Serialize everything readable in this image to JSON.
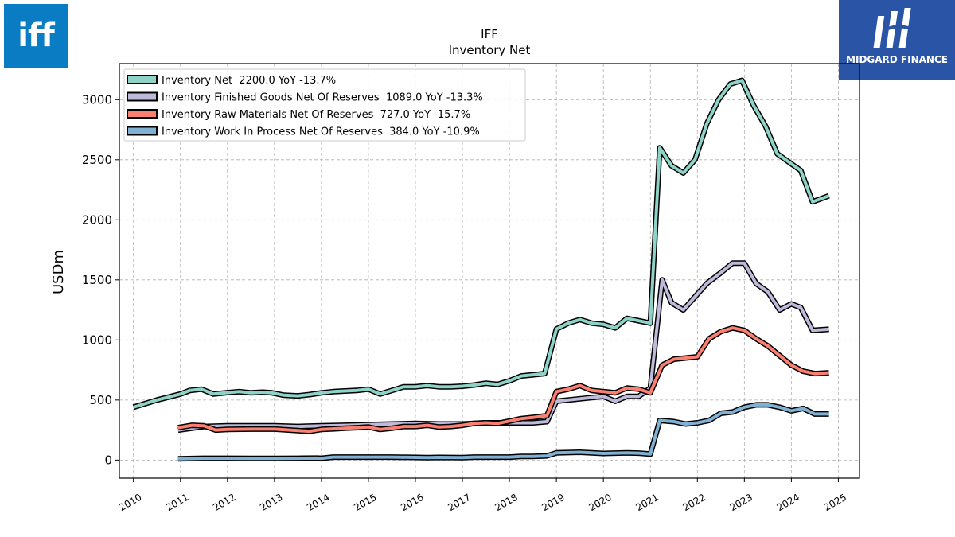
{
  "logos": {
    "left_text": "iff",
    "right_text": "MIDGARD FINANCE"
  },
  "chart_data": {
    "type": "line",
    "title": "IFF",
    "subtitle": "Inventory Net",
    "ylabel": "USDm",
    "xlabel": "",
    "xlim": [
      2009.7,
      2025.45
    ],
    "ylim": [
      -150,
      3300
    ],
    "yticks": [
      0,
      500,
      1000,
      1500,
      2000,
      2500,
      3000
    ],
    "xticks": [
      2010,
      2011,
      2012,
      2013,
      2014,
      2015,
      2016,
      2017,
      2018,
      2019,
      2020,
      2021,
      2022,
      2023,
      2024,
      2025
    ],
    "grid": true,
    "legend_position": "top-left",
    "series": [
      {
        "name": "Inventory Net  2200.0 YoY -13.7%",
        "color": "#8dd3c7",
        "x": [
          2010.0,
          2010.5,
          2011.0,
          2011.2,
          2011.45,
          2011.7,
          2011.95,
          2012.25,
          2012.5,
          2012.75,
          2012.95,
          2013.2,
          2013.5,
          2013.75,
          2014.0,
          2014.25,
          2014.5,
          2014.75,
          2015.0,
          2015.25,
          2015.5,
          2015.75,
          2016.0,
          2016.25,
          2016.5,
          2016.75,
          2017.0,
          2017.25,
          2017.5,
          2017.75,
          2018.0,
          2018.25,
          2018.5,
          2018.75,
          2019.0,
          2019.25,
          2019.5,
          2019.75,
          2020.0,
          2020.25,
          2020.5,
          2020.75,
          2021.0,
          2021.2,
          2021.45,
          2021.7,
          2021.95,
          2022.2,
          2022.45,
          2022.7,
          2022.95,
          2023.2,
          2023.45,
          2023.7,
          2023.95,
          2024.2,
          2024.45,
          2024.8
        ],
        "y": [
          440,
          500,
          550,
          580,
          590,
          550,
          560,
          570,
          560,
          565,
          560,
          540,
          535,
          545,
          560,
          570,
          575,
          580,
          590,
          550,
          580,
          610,
          610,
          620,
          610,
          610,
          615,
          625,
          640,
          630,
          660,
          700,
          710,
          720,
          1090,
          1140,
          1170,
          1140,
          1130,
          1100,
          1180,
          1160,
          1140,
          2600,
          2450,
          2390,
          2500,
          2800,
          3000,
          3130,
          3160,
          2950,
          2780,
          2550,
          2480,
          2410,
          2150,
          2200
        ]
      },
      {
        "name": "Inventory Finished Goods Net Of Reserves  1089.0 YoY -13.3%",
        "color": "#bebada",
        "x": [
          2010.95,
          2011.5,
          2012.0,
          2012.5,
          2013.0,
          2013.5,
          2014.0,
          2014.5,
          2015.0,
          2015.5,
          2016.0,
          2016.5,
          2017.0,
          2017.5,
          2018.0,
          2018.5,
          2018.8,
          2019.0,
          2019.5,
          2019.75,
          2020.0,
          2020.25,
          2020.5,
          2020.75,
          2021.0,
          2021.25,
          2021.45,
          2021.7,
          2021.95,
          2022.2,
          2022.5,
          2022.75,
          2023.0,
          2023.25,
          2023.5,
          2023.75,
          2024.0,
          2024.2,
          2024.45,
          2024.8
        ],
        "y": [
          250,
          280,
          285,
          285,
          285,
          280,
          285,
          290,
          295,
          300,
          305,
          300,
          300,
          310,
          310,
          310,
          320,
          490,
          510,
          520,
          530,
          490,
          530,
          530,
          600,
          1500,
          1310,
          1250,
          1360,
          1470,
          1560,
          1640,
          1640,
          1470,
          1400,
          1250,
          1300,
          1270,
          1080,
          1089
        ]
      },
      {
        "name": "Inventory Raw Materials Net Of Reserves  727.0 YoY -15.7%",
        "color": "#fb8072",
        "x": [
          2010.95,
          2011.25,
          2011.5,
          2011.75,
          2012.0,
          2012.5,
          2013.0,
          2013.5,
          2013.75,
          2014.0,
          2014.25,
          2014.5,
          2014.75,
          2015.0,
          2015.25,
          2015.5,
          2015.75,
          2016.0,
          2016.25,
          2016.5,
          2016.75,
          2017.0,
          2017.25,
          2017.5,
          2017.75,
          2018.0,
          2018.25,
          2018.5,
          2018.8,
          2019.0,
          2019.25,
          2019.5,
          2019.75,
          2020.0,
          2020.25,
          2020.5,
          2020.75,
          2021.0,
          2021.25,
          2021.5,
          2021.75,
          2022.0,
          2022.25,
          2022.5,
          2022.75,
          2023.0,
          2023.25,
          2023.5,
          2023.75,
          2024.0,
          2024.25,
          2024.5,
          2024.8
        ],
        "y": [
          270,
          290,
          285,
          250,
          255,
          258,
          258,
          245,
          240,
          255,
          260,
          265,
          270,
          275,
          255,
          265,
          280,
          280,
          290,
          275,
          280,
          290,
          305,
          310,
          305,
          325,
          345,
          355,
          370,
          570,
          590,
          620,
          580,
          570,
          560,
          600,
          590,
          560,
          790,
          840,
          850,
          860,
          1010,
          1070,
          1100,
          1080,
          1010,
          950,
          870,
          790,
          740,
          720,
          727
        ]
      },
      {
        "name": "Inventory Work In Process Net Of Reserves  384.0 YoY -10.9%",
        "color": "#80b1d3",
        "x": [
          2010.95,
          2011.5,
          2012.0,
          2012.5,
          2013.0,
          2013.5,
          2013.9,
          2014.0,
          2014.25,
          2014.5,
          2015.0,
          2015.5,
          2016.0,
          2016.25,
          2016.5,
          2017.0,
          2017.25,
          2017.5,
          2017.75,
          2018.0,
          2018.25,
          2018.5,
          2018.8,
          2019.0,
          2019.5,
          2019.75,
          2020.0,
          2020.25,
          2020.5,
          2020.75,
          2021.0,
          2021.2,
          2021.5,
          2021.75,
          2022.0,
          2022.25,
          2022.5,
          2022.75,
          2023.0,
          2023.25,
          2023.5,
          2023.75,
          2024.0,
          2024.25,
          2024.5,
          2024.8
        ],
        "y": [
          10,
          15,
          15,
          14,
          14,
          15,
          16,
          15,
          25,
          25,
          25,
          25,
          22,
          20,
          22,
          20,
          25,
          25,
          25,
          25,
          30,
          30,
          35,
          60,
          65,
          60,
          55,
          58,
          60,
          58,
          50,
          330,
          320,
          300,
          310,
          330,
          390,
          400,
          440,
          460,
          460,
          440,
          410,
          430,
          384,
          384
        ]
      }
    ]
  }
}
